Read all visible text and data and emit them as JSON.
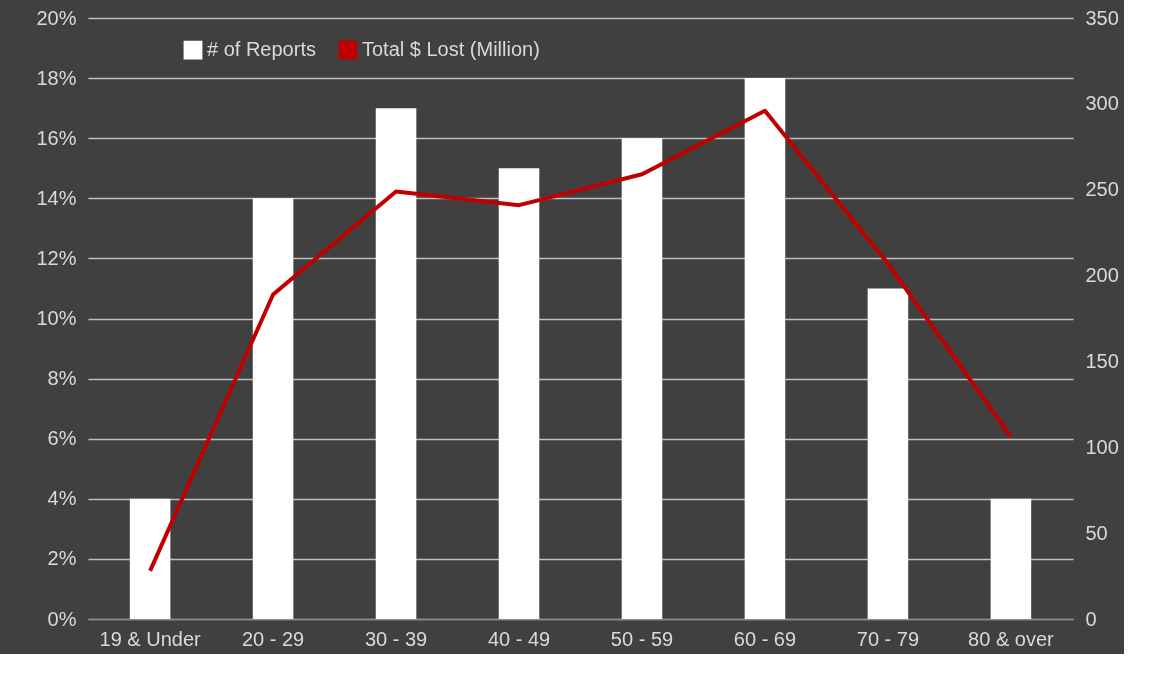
{
  "chart_data": {
    "type": "bar",
    "categories": [
      "19 & Under",
      "20 - 29",
      "30 - 39",
      "40 - 49",
      "50 - 59",
      "60 - 69",
      "70 - 79",
      "80 & over"
    ],
    "series": [
      {
        "name": "# of Reports",
        "color": "#ffffff",
        "values": [
          4,
          14,
          17,
          15,
          16,
          18,
          11,
          4
        ]
      },
      {
        "name": "Total $ Lost (Million)",
        "type": "line",
        "axis": "y2",
        "color": "#c00000",
        "values": [
          28,
          189,
          249,
          241,
          259,
          296,
          207,
          106
        ]
      }
    ],
    "ylim": [
      0,
      20
    ],
    "yticks": [
      {
        "value": 0,
        "label": "0%"
      },
      {
        "value": 2,
        "label": "2%"
      },
      {
        "value": 4,
        "label": "4%"
      },
      {
        "value": 6,
        "label": "6%"
      },
      {
        "value": 8,
        "label": "8%"
      },
      {
        "value": 10,
        "label": "10%"
      },
      {
        "value": 12,
        "label": "12%"
      },
      {
        "value": 14,
        "label": "14%"
      },
      {
        "value": 16,
        "label": "16%"
      },
      {
        "value": 18,
        "label": "18%"
      },
      {
        "value": 20,
        "label": "20%"
      }
    ],
    "y2lim": [
      0,
      350
    ],
    "y2ticks": [
      0,
      50,
      100,
      150,
      200,
      250,
      300,
      350
    ],
    "grid": "y",
    "legend": "top",
    "marker": "none",
    "line_style": "solid"
  }
}
